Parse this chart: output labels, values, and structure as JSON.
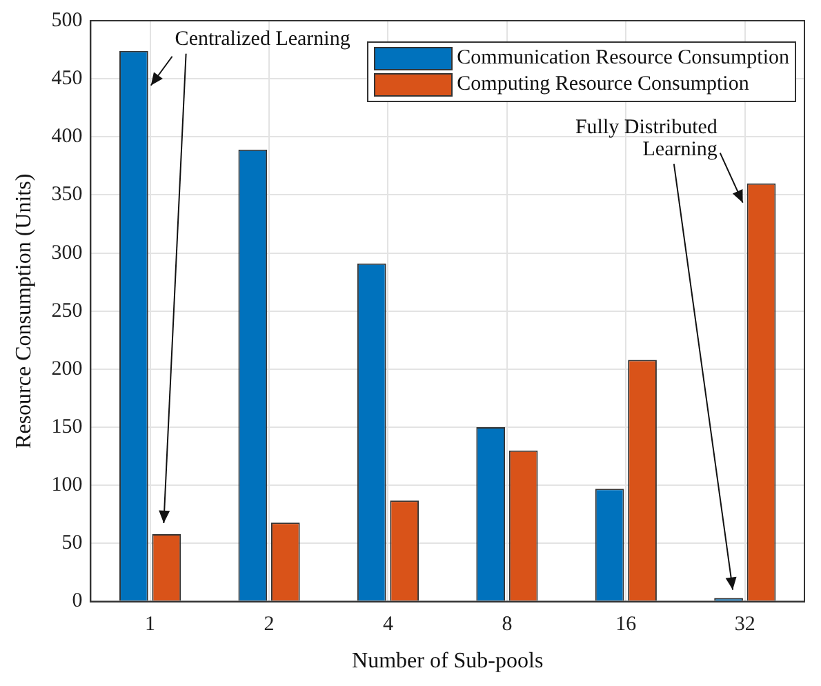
{
  "chart_data": {
    "type": "bar",
    "xlabel": "Number of Sub-pools",
    "ylabel": "Resource Consumption (Units)",
    "categories": [
      "1",
      "2",
      "4",
      "8",
      "16",
      "32"
    ],
    "series": [
      {
        "name": "Communication Resource Consumption",
        "color": "#0072bd",
        "values": [
          474,
          389,
          291,
          150,
          97,
          3
        ]
      },
      {
        "name": "Computing Resource Consumption",
        "color": "#d95319",
        "values": [
          58,
          68,
          87,
          130,
          208,
          360
        ]
      }
    ],
    "ylim": [
      0,
      500
    ],
    "yticks": [
      0,
      50,
      100,
      150,
      200,
      250,
      300,
      350,
      400,
      450,
      500
    ],
    "grid": true,
    "legend": "top right",
    "annotations": [
      {
        "text": "Centralized Learning",
        "x": "1",
        "y": 474
      },
      {
        "text": "Fully Distributed\nLearning",
        "x": "32",
        "y": 360
      }
    ]
  }
}
